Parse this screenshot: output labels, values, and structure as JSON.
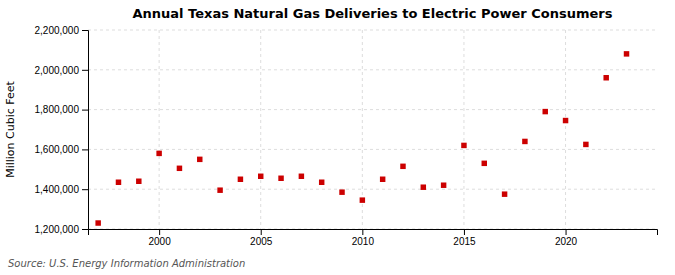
{
  "chart_data": {
    "type": "scatter",
    "title": "Annual Texas Natural Gas Deliveries to Electric Power Consumers",
    "ylabel": "Million Cubic Feet",
    "source": "Source: U.S. Energy Information Administration",
    "x": [
      1997,
      1998,
      1999,
      2000,
      2001,
      2002,
      2003,
      2004,
      2005,
      2006,
      2007,
      2008,
      2009,
      2010,
      2011,
      2012,
      2013,
      2014,
      2015,
      2016,
      2017,
      2018,
      2019,
      2020,
      2021,
      2022,
      2023
    ],
    "values": [
      1230000,
      1435000,
      1440000,
      1580000,
      1505000,
      1550000,
      1395000,
      1450000,
      1465000,
      1455000,
      1465000,
      1435000,
      1385000,
      1345000,
      1450000,
      1515000,
      1410000,
      1420000,
      1620000,
      1530000,
      1375000,
      1640000,
      1790000,
      1745000,
      1625000,
      1960000,
      2080000
    ],
    "color": "#CC0000",
    "marker": "square",
    "xlim": [
      1996.5,
      2024.5
    ],
    "ylim": [
      1200000,
      2200000
    ],
    "xticks": [
      2000,
      2005,
      2010,
      2015,
      2020
    ],
    "yticks": [
      {
        "value": 1200000,
        "label": "1,200,000"
      },
      {
        "value": 1400000,
        "label": "1,400,000"
      },
      {
        "value": 1600000,
        "label": "1,600,000"
      },
      {
        "value": 1800000,
        "label": "1,800,000"
      },
      {
        "value": 2000000,
        "label": "2,000,000"
      },
      {
        "value": 2200000,
        "label": "2,200,000"
      }
    ],
    "grid": true
  }
}
